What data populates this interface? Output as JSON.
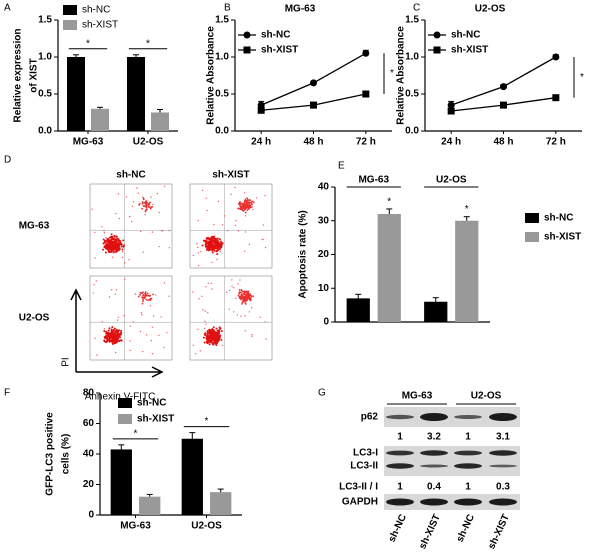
{
  "panel_labels": [
    "A",
    "B",
    "C",
    "D",
    "E",
    "F",
    "G"
  ],
  "chart_data": [
    {
      "type": "bar",
      "ylabel": [
        "Relative expression",
        "of XIST"
      ],
      "categories": [
        "MG-63",
        "U2-OS"
      ],
      "series": [
        {
          "name": "sh-NC",
          "color": "#000000",
          "values": [
            1.0,
            1.0
          ],
          "errors": [
            0.03,
            0.03
          ]
        },
        {
          "name": "sh-XIST",
          "color": "#999999",
          "values": [
            0.3,
            0.25
          ],
          "errors": [
            0.02,
            0.04
          ]
        }
      ],
      "ylim": [
        0,
        1.5
      ],
      "yticks": [
        {
          "value": 0,
          "label": "0.0"
        },
        {
          "value": 0.5,
          "label": "0.5"
        },
        {
          "value": 1,
          "label": "1.0"
        },
        {
          "value": 1.5,
          "label": "1.5"
        }
      ],
      "legend": "upper left",
      "annotations": [
        "*",
        "*"
      ]
    },
    {
      "type": "line",
      "title": "MG-63",
      "ylabel": [
        "Relative Absorbance"
      ],
      "categories": [
        "24 h",
        "48 h",
        "72 h"
      ],
      "series": [
        {
          "name": "sh-NC",
          "color": "#000000",
          "marker": "circle",
          "values": [
            0.35,
            0.65,
            1.05
          ],
          "errors": [
            0.05,
            0.02,
            0.04
          ]
        },
        {
          "name": "sh-XIST",
          "color": "#000000",
          "marker": "square",
          "values": [
            0.28,
            0.35,
            0.5
          ],
          "errors": [
            0.03,
            0.02,
            0.03
          ]
        }
      ],
      "ylim": [
        0,
        1.5
      ],
      "yticks": [
        {
          "value": 0,
          "label": "0.0"
        },
        {
          "value": 0.5,
          "label": "0.5"
        },
        {
          "value": 1,
          "label": "1.0"
        },
        {
          "value": 1.5,
          "label": "1.5"
        }
      ],
      "legend": "upper left",
      "annotations": [
        "*"
      ]
    },
    {
      "type": "line",
      "title": "U2-OS",
      "ylabel": [
        "Relative Absorbance"
      ],
      "categories": [
        "24 h",
        "48 h",
        "72 h"
      ],
      "series": [
        {
          "name": "sh-NC",
          "color": "#000000",
          "marker": "circle",
          "values": [
            0.35,
            0.6,
            1.0
          ],
          "errors": [
            0.05,
            0.03,
            0.03
          ]
        },
        {
          "name": "sh-XIST",
          "color": "#000000",
          "marker": "square",
          "values": [
            0.27,
            0.35,
            0.45
          ],
          "errors": [
            0.02,
            0.02,
            0.03
          ]
        }
      ],
      "ylim": [
        0,
        1.5
      ],
      "yticks": [
        {
          "value": 0,
          "label": "0.0"
        },
        {
          "value": 0.5,
          "label": "0.5"
        },
        {
          "value": 1,
          "label": "1.0"
        },
        {
          "value": 1.5,
          "label": "1.5"
        }
      ],
      "legend": "upper left",
      "annotations": [
        "*"
      ]
    },
    {
      "type": "bar",
      "ylabel": [
        "Apoptosis rate (%)"
      ],
      "categories": [
        "MG-63",
        "U2-OS"
      ],
      "series": [
        {
          "name": "sh-NC",
          "color": "#000000",
          "values": [
            7,
            6
          ],
          "errors": [
            1.2,
            1.2
          ]
        },
        {
          "name": "sh-XIST",
          "color": "#999999",
          "values": [
            32,
            30
          ],
          "errors": [
            1.5,
            1.2
          ]
        }
      ],
      "ylim": [
        0,
        40
      ],
      "yticks": [
        0,
        10,
        20,
        30,
        40
      ],
      "legend": "right",
      "annotations": [
        "*",
        "*"
      ]
    },
    {
      "type": "bar",
      "ylabel": [
        "GFP-LC3 positive",
        "cells (%)"
      ],
      "categories": [
        "MG-63",
        "U2-OS"
      ],
      "series": [
        {
          "name": "sh-NC",
          "color": "#000000",
          "values": [
            43,
            50
          ],
          "errors": [
            3,
            4
          ]
        },
        {
          "name": "sh-XIST",
          "color": "#999999",
          "values": [
            12,
            15
          ],
          "errors": [
            1.5,
            2
          ]
        }
      ],
      "ylim": [
        0,
        80
      ],
      "yticks": [
        0,
        20,
        40,
        60,
        80
      ],
      "legend": "upper center",
      "annotations": [
        "*",
        "*"
      ]
    }
  ],
  "flow_cytometry": {
    "columns": [
      "sh-NC",
      "sh-XIST"
    ],
    "rows": [
      "MG-63",
      "U2-OS"
    ],
    "y_axis": "PI",
    "x_axis": "Annexin V-FITC"
  },
  "western_blot": {
    "groups": [
      "MG-63",
      "U2-OS"
    ],
    "lanes": [
      "sh-NC",
      "sh-XIST",
      "sh-NC",
      "sh-XIST"
    ],
    "p62": "p62",
    "p62_ratio": [
      1,
      3.2,
      1,
      3.1
    ],
    "lc3_labels": [
      "LC3-I",
      "LC3-II"
    ],
    "lc3_ratio_label": "LC3-II / I",
    "lc3_ratio": [
      1,
      0.4,
      1,
      0.3
    ],
    "loading": "GAPDH"
  }
}
